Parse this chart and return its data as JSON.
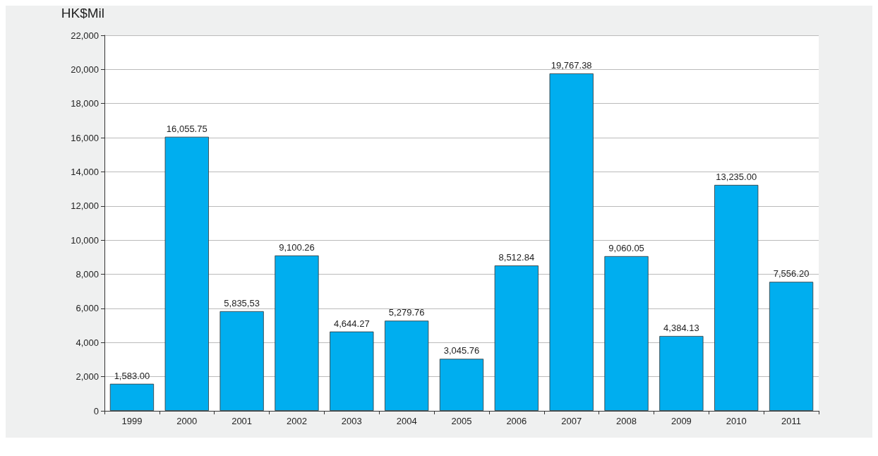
{
  "chart_data": {
    "type": "bar",
    "ylabel": "HK$Mil",
    "categories": [
      "1999",
      "2000",
      "2001",
      "2002",
      "2003",
      "2004",
      "2005",
      "2006",
      "2007",
      "2008",
      "2009",
      "2010",
      "2011"
    ],
    "values": [
      1583.0,
      16055.75,
      5835.53,
      9100.26,
      4644.27,
      5279.76,
      3045.76,
      8512.84,
      19767.38,
      9060.05,
      4384.13,
      13235.0,
      7556.2
    ],
    "value_labels": [
      "1,583.00",
      "16,055.75",
      "5,835,53",
      "9,100.26",
      "4,644.27",
      "5,279.76",
      "3,045.76",
      "8,512.84",
      "19,767.38",
      "9,060.05",
      "4,384.13",
      "13,235.00",
      "7,556.20"
    ],
    "color": "#00aeef",
    "ylim": [
      0,
      22000
    ],
    "yticks": [
      {
        "value": 0,
        "label": "0"
      },
      {
        "value": 2000,
        "label": "2,000"
      },
      {
        "value": 4000,
        "label": "4,000"
      },
      {
        "value": 6000,
        "label": "6,000"
      },
      {
        "value": 8000,
        "label": "8,000"
      },
      {
        "value": 10000,
        "label": "10,000"
      },
      {
        "value": 12000,
        "label": "12,000"
      },
      {
        "value": 14000,
        "label": "14,000"
      },
      {
        "value": 16000,
        "label": "16,000"
      },
      {
        "value": 18000,
        "label": "18,000"
      },
      {
        "value": 20000,
        "label": "20,000"
      },
      {
        "value": 22000,
        "label": "22,000"
      }
    ],
    "grid": "y"
  }
}
